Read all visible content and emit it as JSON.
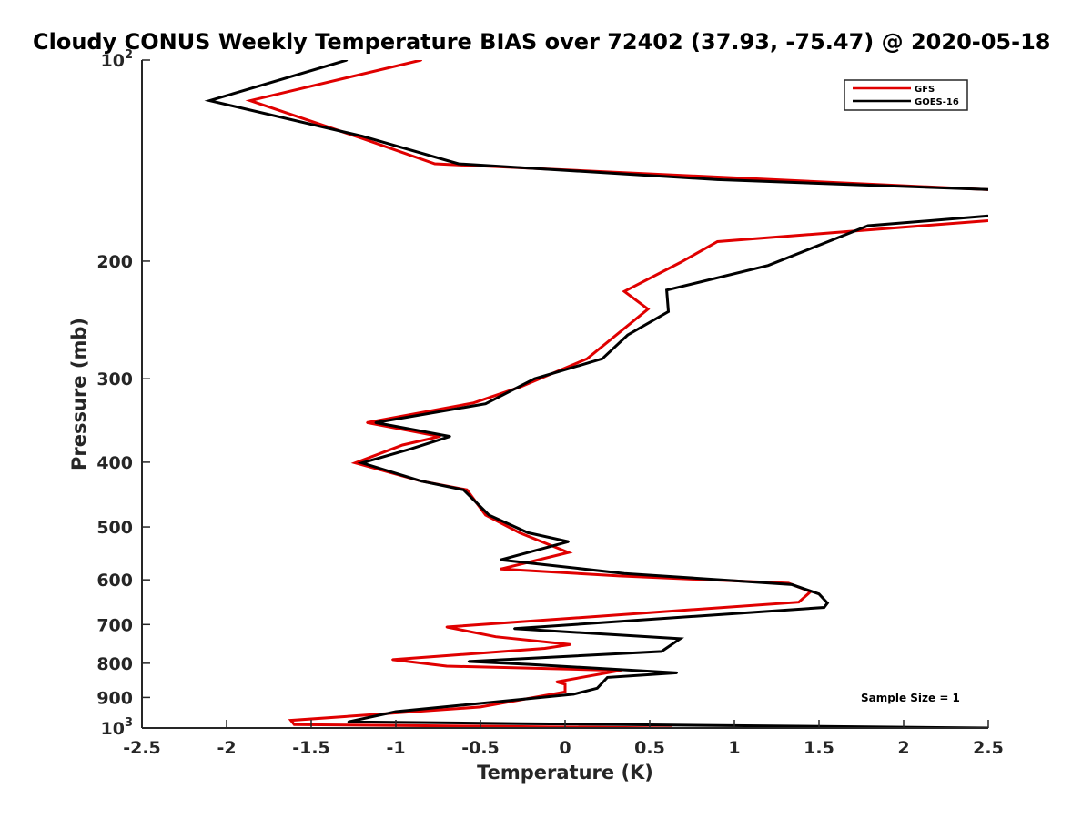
{
  "chart_data": {
    "type": "line",
    "title": "Cloudy CONUS Weekly Temperature BIAS over 72402 (37.93, -75.47) @ 2020-05-18",
    "xlabel": "Temperature (K)",
    "ylabel": "Pressure (mb)",
    "xlim": [
      -2.5,
      2.5
    ],
    "ylim": [
      100,
      1000
    ],
    "y_scale": "log",
    "y_reversed": true,
    "grid": false,
    "legend_position": "top-right",
    "x_ticks": [
      {
        "value": -2.5,
        "label": "-2.5"
      },
      {
        "value": -2,
        "label": "-2"
      },
      {
        "value": -1.5,
        "label": "-1.5"
      },
      {
        "value": -1,
        "label": "-1"
      },
      {
        "value": -0.5,
        "label": "-0.5"
      },
      {
        "value": 0,
        "label": "0"
      },
      {
        "value": 0.5,
        "label": "0.5"
      },
      {
        "value": 1,
        "label": "1"
      },
      {
        "value": 1.5,
        "label": "1.5"
      },
      {
        "value": 2,
        "label": "2"
      },
      {
        "value": 2.5,
        "label": "2.5"
      }
    ],
    "y_ticks": [
      {
        "value": 100,
        "base": "10",
        "exp": "2"
      },
      {
        "value": 200,
        "base": "200",
        "exp": ""
      },
      {
        "value": 300,
        "base": "300",
        "exp": ""
      },
      {
        "value": 400,
        "base": "400",
        "exp": ""
      },
      {
        "value": 500,
        "base": "500",
        "exp": ""
      },
      {
        "value": 600,
        "base": "600",
        "exp": ""
      },
      {
        "value": 700,
        "base": "700",
        "exp": ""
      },
      {
        "value": 800,
        "base": "800",
        "exp": ""
      },
      {
        "value": 900,
        "base": "900",
        "exp": ""
      },
      {
        "value": 1000,
        "base": "10",
        "exp": "3"
      }
    ],
    "annotation": "Sample Size = 1",
    "series": [
      {
        "name": "GFS",
        "color": "#e00000",
        "points": [
          [
            -0.85,
            100
          ],
          [
            -1.86,
            115
          ],
          [
            -1.2,
            131
          ],
          [
            -0.77,
            143
          ],
          [
            3.12,
            159
          ],
          [
            3.27,
            168
          ],
          [
            0.9,
            187
          ],
          [
            0.68,
            201
          ],
          [
            0.35,
            222
          ],
          [
            0.49,
            236
          ],
          [
            0.13,
            280
          ],
          [
            -0.27,
            309
          ],
          [
            -0.54,
            326
          ],
          [
            -1.17,
            349
          ],
          [
            -0.74,
            366
          ],
          [
            -0.96,
            377
          ],
          [
            -1.24,
            401
          ],
          [
            -0.85,
            427
          ],
          [
            -0.58,
            440
          ],
          [
            -0.47,
            480
          ],
          [
            -0.27,
            510
          ],
          [
            0.02,
            546
          ],
          [
            -0.38,
            578
          ],
          [
            0.32,
            592
          ],
          [
            1.32,
            607
          ],
          [
            1.45,
            625
          ],
          [
            1.38,
            648
          ],
          [
            -0.7,
            706
          ],
          [
            -0.41,
            730
          ],
          [
            0.03,
            750
          ],
          [
            -0.12,
            760
          ],
          [
            -1.02,
            790
          ],
          [
            -0.7,
            808
          ],
          [
            0.33,
            820
          ],
          [
            -0.05,
            853
          ],
          [
            0.0,
            860
          ],
          [
            0.0,
            883
          ],
          [
            -0.5,
            930
          ],
          [
            -1.62,
            974
          ],
          [
            -1.6,
            988
          ],
          [
            0.63,
            1000
          ]
        ]
      },
      {
        "name": "GOES-16",
        "color": "#000000",
        "points": [
          [
            -1.29,
            100
          ],
          [
            -2.1,
            115
          ],
          [
            -1.2,
            130
          ],
          [
            -0.63,
            143
          ],
          [
            0.9,
            151
          ],
          [
            3.02,
            158
          ],
          [
            3.27,
            165
          ],
          [
            1.79,
            177
          ],
          [
            1.2,
            203
          ],
          [
            0.6,
            221
          ],
          [
            0.61,
            238
          ],
          [
            0.37,
            258
          ],
          [
            0.22,
            280
          ],
          [
            -0.18,
            300
          ],
          [
            -0.47,
            327
          ],
          [
            -1.12,
            349
          ],
          [
            -0.68,
            366
          ],
          [
            -0.91,
            382
          ],
          [
            -1.2,
            401
          ],
          [
            -0.85,
            427
          ],
          [
            -0.6,
            440
          ],
          [
            -0.45,
            480
          ],
          [
            -0.22,
            510
          ],
          [
            0.02,
            526
          ],
          [
            -0.38,
            560
          ],
          [
            0.35,
            587
          ],
          [
            1.34,
            610
          ],
          [
            1.5,
            630
          ],
          [
            1.55,
            650
          ],
          [
            1.53,
            660
          ],
          [
            -0.3,
            710
          ],
          [
            0.68,
            735
          ],
          [
            0.57,
            768
          ],
          [
            -0.57,
            795
          ],
          [
            -0.21,
            803
          ],
          [
            0.66,
            827
          ],
          [
            0.25,
            840
          ],
          [
            0.19,
            872
          ],
          [
            0.05,
            890
          ],
          [
            -1.0,
            945
          ],
          [
            -1.28,
            979
          ],
          [
            -0.26,
            985
          ],
          [
            2.5,
            1000
          ]
        ]
      }
    ]
  }
}
